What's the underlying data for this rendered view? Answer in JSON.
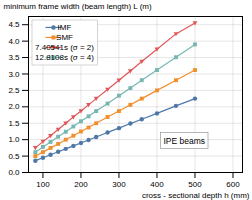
{
  "chart_data": {
    "type": "line",
    "xlabel": "cross - sectional depth h (mm)",
    "ylabel": "minimum frame width (beam length) L (m)",
    "x": [
      80,
      100,
      120,
      140,
      160,
      180,
      200,
      220,
      240,
      270,
      300,
      330,
      360,
      400,
      450,
      500
    ],
    "xlim": [
      62,
      625
    ],
    "ylim": [
      0.0,
      4.75
    ],
    "xticks": [
      100,
      200,
      300,
      400,
      500,
      600
    ],
    "yticks": [
      {
        "value": 0,
        "label": "0.0"
      },
      0.5,
      {
        "value": 1,
        "label": "1.0"
      },
      1.5,
      {
        "value": 2,
        "label": "2.0"
      },
      2.5,
      {
        "value": 3,
        "label": "3.0"
      },
      3.5,
      {
        "value": 4,
        "label": "4.0"
      },
      4.5
    ],
    "series": [
      {
        "name": "IMF",
        "marker": "circle",
        "line_style": "solid",
        "values": [
          0.36,
          0.45,
          0.54,
          0.63,
          0.72,
          0.81,
          0.9,
          0.99,
          1.08,
          1.22,
          1.35,
          1.49,
          1.62,
          1.8,
          2.03,
          2.25
        ]
      },
      {
        "name": "SMF",
        "marker": "square",
        "line_style": "solid",
        "values": [
          0.5,
          0.62,
          0.75,
          0.87,
          1.0,
          1.12,
          1.25,
          1.37,
          1.5,
          1.69,
          1.87,
          2.06,
          2.25,
          2.5,
          2.81,
          3.12
        ]
      },
      {
        "name": "7.40541s (σ = 2)",
        "marker": "triangle_down",
        "line_style": "solid",
        "values": [
          0.75,
          0.94,
          1.12,
          1.31,
          1.5,
          1.69,
          1.87,
          2.06,
          2.25,
          2.53,
          2.81,
          3.09,
          3.38,
          3.75,
          4.22,
          4.55
        ]
      },
      {
        "name": "12.8108s (σ = 4)",
        "marker": "square",
        "line_style": "solid",
        "values": [
          0.62,
          0.78,
          0.93,
          1.09,
          1.24,
          1.4,
          1.56,
          1.71,
          1.87,
          2.1,
          2.34,
          2.57,
          2.81,
          3.12,
          3.51,
          3.9
        ]
      }
    ],
    "grid": true,
    "legend": "upper left",
    "annotation": "IPE beams"
  }
}
